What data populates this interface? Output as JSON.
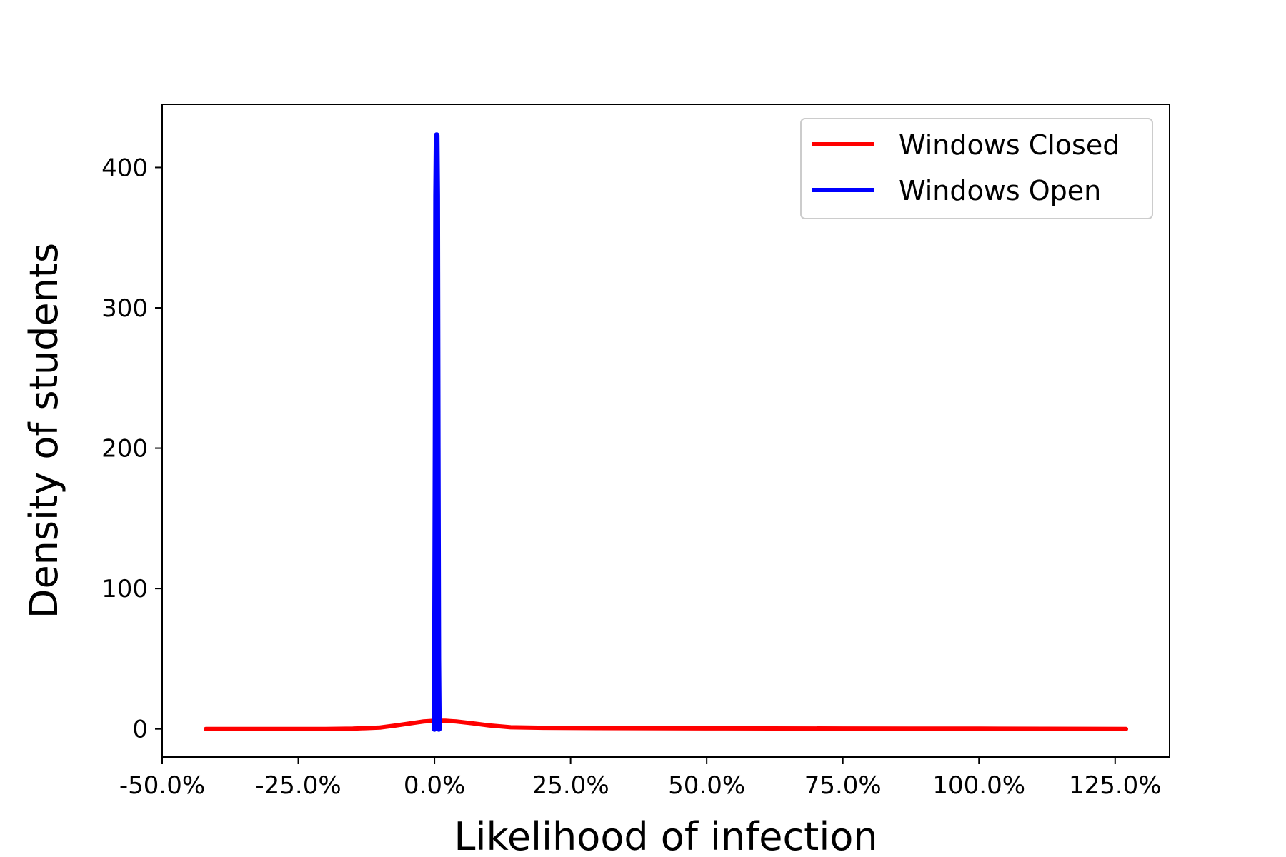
{
  "chart_data": {
    "type": "line",
    "title": "",
    "xlabel": "Likelihood of infection",
    "ylabel": "Density of students",
    "xlim": [
      -0.5,
      1.35
    ],
    "ylim": [
      -20,
      445
    ],
    "x_tick_values": [
      -0.5,
      -0.25,
      0.0,
      0.25,
      0.5,
      0.75,
      1.0,
      1.25
    ],
    "x_tick_labels": [
      "-50.0%",
      "-25.0%",
      "0.0%",
      "25.0%",
      "50.0%",
      "75.0%",
      "100.0%",
      "125.0%"
    ],
    "y_tick_values": [
      0,
      100,
      200,
      300,
      400
    ],
    "y_tick_labels": [
      "0",
      "100",
      "200",
      "300",
      "400"
    ],
    "grid": false,
    "legend_position": "top-right",
    "series": [
      {
        "name": "Windows Closed",
        "color": "#ff0000",
        "x": [
          -0.42,
          -0.3,
          -0.2,
          -0.15,
          -0.1,
          -0.07,
          -0.04,
          -0.02,
          0.0,
          0.02,
          0.04,
          0.07,
          0.1,
          0.14,
          0.2,
          0.3,
          0.5,
          0.75,
          1.0,
          1.27
        ],
        "y": [
          0,
          0,
          0,
          0.2,
          1.0,
          2.5,
          4.2,
          5.3,
          5.8,
          5.8,
          5.3,
          4.0,
          2.5,
          1.2,
          0.8,
          0.6,
          0.4,
          0.3,
          0.2,
          0
        ]
      },
      {
        "name": "Windows Open",
        "color": "#0000ff",
        "x": [
          0.0,
          0.001,
          0.002,
          0.003,
          0.004,
          0.005,
          0.006,
          0.007,
          0.008
        ],
        "y": [
          0,
          50,
          200,
          380,
          423,
          380,
          200,
          50,
          0
        ]
      }
    ]
  }
}
